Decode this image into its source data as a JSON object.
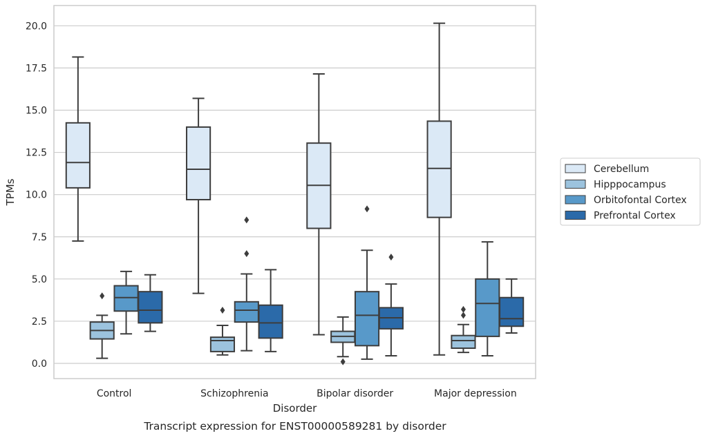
{
  "caption": "Transcript expression for ENST00000589281 by disorder",
  "chart_data": {
    "type": "box",
    "xlabel": "Disorder",
    "ylabel": "TPMs",
    "ylim": [
      -0.9,
      21.2
    ],
    "yticks": [
      "0.0",
      "2.5",
      "5.0",
      "7.5",
      "10.0",
      "12.5",
      "15.0",
      "17.5",
      "20.0"
    ],
    "categories": [
      "Control",
      "Schizophrenia",
      "Bipolar disorder",
      "Major depression"
    ],
    "grid": "horizontal",
    "legend_position": "right",
    "series": [
      {
        "name": "Cerebellum",
        "color": "#dbe9f6",
        "boxes": [
          {
            "whisker_low": 7.25,
            "q1": 10.4,
            "median": 11.9,
            "q3": 14.25,
            "whisker_high": 18.15,
            "outliers": []
          },
          {
            "whisker_low": 4.15,
            "q1": 9.7,
            "median": 11.5,
            "q3": 14.0,
            "whisker_high": 15.7,
            "outliers": []
          },
          {
            "whisker_low": 1.7,
            "q1": 8.0,
            "median": 10.55,
            "q3": 13.05,
            "whisker_high": 17.15,
            "outliers": []
          },
          {
            "whisker_low": 0.5,
            "q1": 8.65,
            "median": 11.55,
            "q3": 14.35,
            "whisker_high": 20.15,
            "outliers": []
          }
        ]
      },
      {
        "name": "Hipppocampus",
        "color": "#9cc3de",
        "boxes": [
          {
            "whisker_low": 0.3,
            "q1": 1.45,
            "median": 1.95,
            "q3": 2.45,
            "whisker_high": 2.85,
            "outliers": [
              4.0
            ]
          },
          {
            "whisker_low": 0.5,
            "q1": 0.7,
            "median": 1.35,
            "q3": 1.55,
            "whisker_high": 2.25,
            "outliers": [
              3.15
            ]
          },
          {
            "whisker_low": 0.4,
            "q1": 1.25,
            "median": 1.6,
            "q3": 1.9,
            "whisker_high": 2.75,
            "outliers": [
              0.1
            ]
          },
          {
            "whisker_low": 0.65,
            "q1": 0.9,
            "median": 1.35,
            "q3": 1.65,
            "whisker_high": 2.3,
            "outliers": [
              2.85,
              3.2
            ]
          }
        ]
      },
      {
        "name": "Orbitofontal Cortex",
        "color": "#5899c9",
        "boxes": [
          {
            "whisker_low": 1.75,
            "q1": 3.1,
            "median": 3.9,
            "q3": 4.6,
            "whisker_high": 5.45,
            "outliers": []
          },
          {
            "whisker_low": 0.75,
            "q1": 2.45,
            "median": 3.15,
            "q3": 3.65,
            "whisker_high": 5.3,
            "outliers": [
              6.5,
              8.5
            ]
          },
          {
            "whisker_low": 0.25,
            "q1": 1.05,
            "median": 2.85,
            "q3": 4.25,
            "whisker_high": 6.7,
            "outliers": [
              9.15
            ]
          },
          {
            "whisker_low": 0.45,
            "q1": 1.6,
            "median": 3.55,
            "q3": 5.0,
            "whisker_high": 7.2,
            "outliers": []
          }
        ]
      },
      {
        "name": "Prefrontal Cortex",
        "color": "#2b6aa9",
        "boxes": [
          {
            "whisker_low": 1.9,
            "q1": 2.4,
            "median": 3.15,
            "q3": 4.25,
            "whisker_high": 5.25,
            "outliers": []
          },
          {
            "whisker_low": 0.7,
            "q1": 1.5,
            "median": 2.4,
            "q3": 3.45,
            "whisker_high": 5.55,
            "outliers": []
          },
          {
            "whisker_low": 0.45,
            "q1": 2.05,
            "median": 2.7,
            "q3": 3.3,
            "whisker_high": 4.7,
            "outliers": [
              6.3
            ]
          },
          {
            "whisker_low": 1.8,
            "q1": 2.2,
            "median": 2.65,
            "q3": 3.9,
            "whisker_high": 5.0,
            "outliers": []
          }
        ]
      }
    ]
  }
}
